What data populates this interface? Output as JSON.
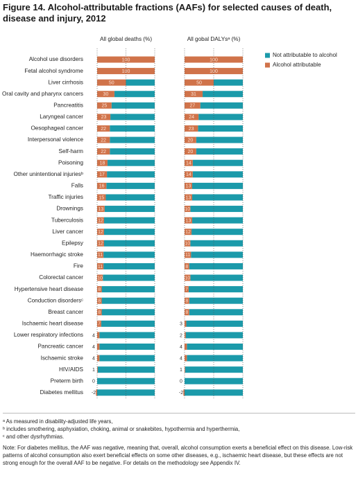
{
  "title_label": "Figure 14.",
  "title": "Alcohol-attributable fractions (AAFs) for selected causes of death, disease and injury, 2012",
  "chart_data": {
    "type": "bar",
    "orientation": "horizontal",
    "stacked": true,
    "panel_titles": [
      "All global deaths (%)",
      "All gobal DALYsᵃ (%)"
    ],
    "categories": [
      "Alcohol use disorders",
      "Fetal alcohol syndrome",
      "Liver cirrhosis",
      "Oral cavity and pharynx cancers",
      "Pancreatitis",
      "Laryngeal cancer",
      "Oesophageal cancer",
      "Interpersonal violence",
      "Self-harm",
      "Poisoning",
      "Other unintentional injuriesᵇ",
      "Falls",
      "Traffic injuries",
      "Drownings",
      "Tuberculosis",
      "Liver cancer",
      "Epilepsy",
      "Haemorrhagic stroke",
      "Fire",
      "Colorectal cancer",
      "Hypertensive heart disease",
      "Conduction disordersᶜ",
      "Breast cancer",
      "Ischaemic heart disease",
      "Lower respiratory infections",
      "Pancreatic cancer",
      "Ischaemic stroke",
      "HIV/AIDS",
      "Preterm birth",
      "Diabetes mellitus"
    ],
    "series": [
      {
        "name": "Not attributable to alcohol",
        "color": "#1b9aaa",
        "values": [
          [
            0,
            0,
            50,
            70,
            75,
            77,
            78,
            78,
            78,
            82,
            83,
            84,
            85,
            87,
            88,
            88,
            88,
            89,
            89,
            90,
            92,
            92,
            92,
            93,
            96,
            96,
            96,
            99,
            100,
            100
          ],
          [
            0,
            0,
            50,
            69,
            73,
            76,
            77,
            80,
            80,
            86,
            86,
            87,
            87,
            90,
            87,
            88,
            90,
            89,
            92,
            90,
            93,
            92,
            92,
            97,
            98,
            96,
            96,
            99,
            100,
            100
          ]
        ]
      },
      {
        "name": "Alcohol attributable",
        "color": "#d0734a",
        "values": [
          [
            100,
            100,
            50,
            30,
            25,
            23,
            22,
            22,
            22,
            18,
            17,
            16,
            15,
            13,
            12,
            12,
            12,
            11,
            11,
            10,
            8,
            8,
            8,
            7,
            4,
            4,
            4,
            1,
            0,
            -2
          ],
          [
            100,
            100,
            50,
            31,
            27,
            24,
            23,
            20,
            20,
            14,
            14,
            13,
            13,
            10,
            13,
            12,
            10,
            11,
            8,
            10,
            7,
            8,
            8,
            3,
            2,
            4,
            4,
            1,
            0,
            -2
          ]
        ]
      }
    ],
    "xlim": [
      0,
      100
    ],
    "grid_x": [
      0,
      50,
      100
    ],
    "legend": "top-right"
  },
  "footnotes": [
    "ᵃ As measured in disability-adjusted life years,",
    "ᵇ includes smothering, asphyxiation, choking, animal or snakebites, hypothermia and hyperthermia,",
    "ᶜ and other dysrhythmias."
  ],
  "note": "Note: For diabetes mellitus, the AAF was negative, meaning that, overall, alcohol consumption exerts a beneficial effect on this disease. Low-risk patterns of alcohol consumption also exert beneficial effects on some other diseases, e.g., ischaemic heart disease, but these effects are not strong enough for the overall AAF to be negative. For details on the methodology see Appendix IV."
}
